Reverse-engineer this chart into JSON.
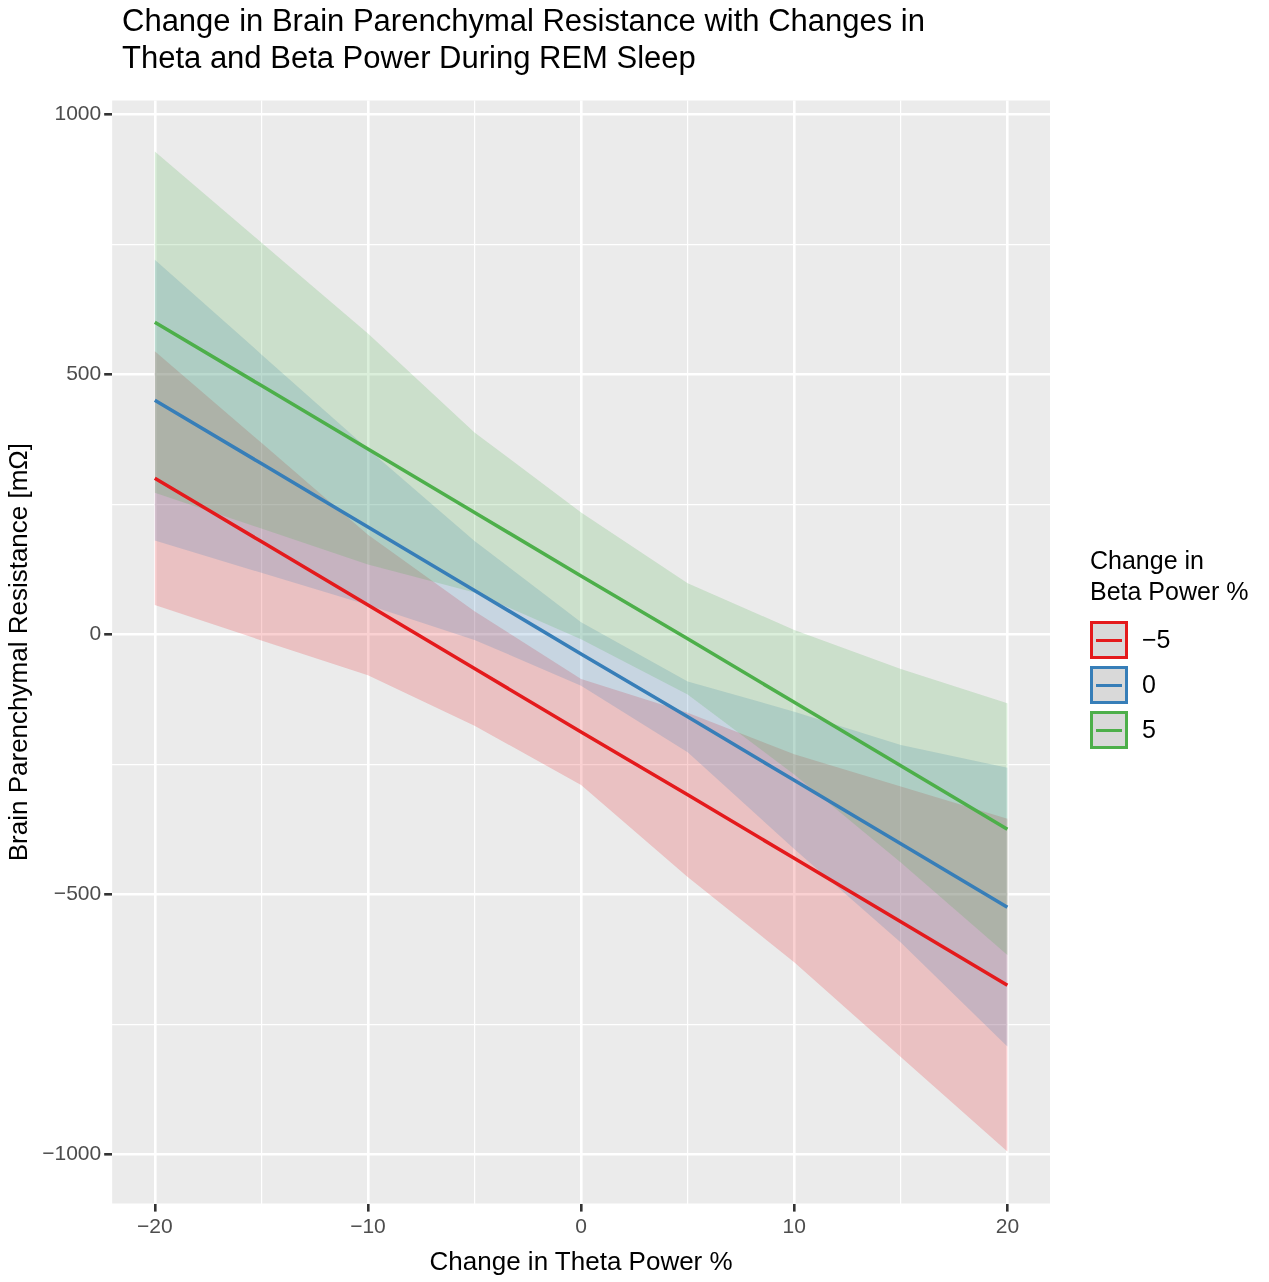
{
  "chart_data": {
    "type": "line",
    "title": "Change in Brain Parenchymal Resistance with Changes in Theta and Beta Power During REM Sleep",
    "xlabel": "Change in Theta Power %",
    "ylabel": "Brain Parenchymal Resistance [mΩ]",
    "legend_title": "Change in Beta Power %",
    "legend": "right",
    "grid": true,
    "x": [
      -20,
      -15,
      -10,
      -5,
      0,
      5,
      10,
      15,
      20
    ],
    "xlim": [
      -22,
      22
    ],
    "xticks": [
      {
        "value": -20,
        "label": "−20"
      },
      {
        "value": -15,
        "label": null
      },
      {
        "value": -10,
        "label": "−10"
      },
      {
        "value": -5,
        "label": null
      },
      0,
      {
        "value": 5,
        "label": null
      },
      10,
      {
        "value": 15,
        "label": null
      },
      20
    ],
    "ylim": [
      -1095,
      1026
    ],
    "yticks": [
      {
        "value": -1000,
        "label": "−1000"
      },
      {
        "value": -750,
        "label": null
      },
      {
        "value": -500,
        "label": "−500"
      },
      {
        "value": -250,
        "label": null
      },
      0,
      {
        "value": 250,
        "label": null
      },
      500,
      {
        "value": 750,
        "label": null
      },
      1000
    ],
    "series": [
      {
        "name": "−5",
        "color": "#e41a1c",
        "values": [
          300,
          178,
          56,
          -66,
          -188,
          -309,
          -431,
          -553,
          -675
        ],
        "upper": [
          544,
          368,
          191,
          44,
          -86,
          -151,
          -231,
          -293,
          -355
        ],
        "lower": [
          56,
          -12,
          -79,
          -176,
          -290,
          -467,
          -631,
          -813,
          -995
        ]
      },
      {
        "name": "0",
        "color": "#377eb8",
        "values": [
          450,
          328,
          206,
          84,
          -38,
          -159,
          -281,
          -403,
          -525
        ],
        "upper": [
          720,
          538,
          356,
          179,
          23,
          -91,
          -149,
          -213,
          -257
        ],
        "lower": [
          180,
          118,
          56,
          -11,
          -99,
          -227,
          -413,
          -593,
          -793
        ]
      },
      {
        "name": "5",
        "color": "#4daf4a",
        "values": [
          600,
          478,
          356,
          234,
          112,
          -9,
          -131,
          -253,
          -375
        ],
        "upper": [
          928,
          753,
          578,
          388,
          234,
          98,
          8,
          -67,
          -133
        ],
        "lower": [
          272,
          203,
          134,
          80,
          -10,
          -116,
          -270,
          -439,
          -617
        ]
      }
    ]
  }
}
